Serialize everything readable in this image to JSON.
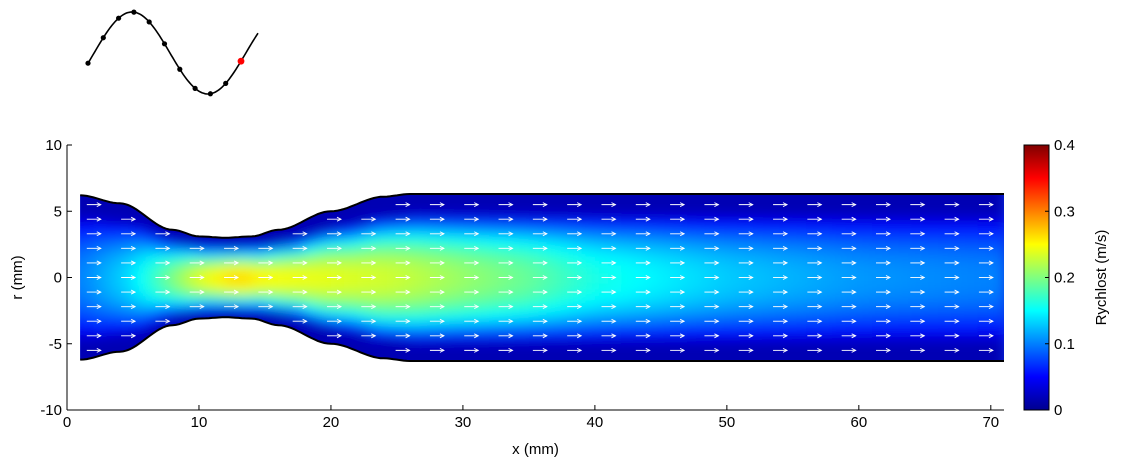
{
  "chart_data": {
    "type": "heatmap",
    "title": "",
    "xlabel": "x (mm)",
    "ylabel": "r (mm)",
    "xlim": [
      0,
      71
    ],
    "ylim": [
      -10,
      10
    ],
    "x_ticks": [
      "0",
      "10",
      "20",
      "30",
      "40",
      "50",
      "60",
      "70"
    ],
    "y_ticks": [
      "10",
      "5",
      "0",
      "-5",
      "-10"
    ],
    "colorbar": {
      "label": "Rychlost (m/s)",
      "range": [
        0,
        0.4
      ],
      "ticks": [
        "0.4",
        "0.3",
        "0.2",
        "0.1",
        "0"
      ],
      "colormap": "jet"
    },
    "vessel_wall_radius": {
      "x": [
        1,
        4,
        8,
        10,
        12,
        14,
        16,
        20,
        24,
        26,
        71
      ],
      "r": [
        6.2,
        5.6,
        3.6,
        3.1,
        3.0,
        3.1,
        3.6,
        5.0,
        6.1,
        6.3,
        6.3
      ]
    },
    "velocity_field_axis": {
      "x": [
        1,
        5,
        8,
        10,
        13,
        15,
        20,
        25,
        30,
        35,
        40,
        50,
        60,
        71
      ],
      "v": [
        0.1,
        0.14,
        0.2,
        0.24,
        0.27,
        0.25,
        0.24,
        0.23,
        0.21,
        0.19,
        0.16,
        0.13,
        0.11,
        0.1
      ]
    },
    "vector_field": "uniform axial arrows (+x) across lumen, disturbed near walls downstream of stenosis",
    "phase_waveform": {
      "type": "line",
      "points_total": 11,
      "highlighted_point_index": 10,
      "highlight_color": "#ff0000",
      "point_color": "#000000"
    }
  }
}
